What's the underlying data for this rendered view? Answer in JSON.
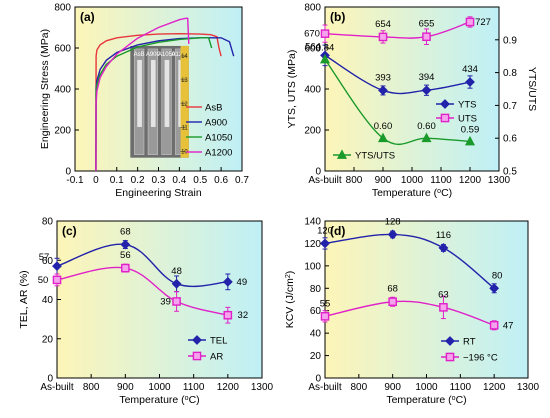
{
  "colors": {
    "red": "#e8363c",
    "blue": "#2222aa",
    "green": "#1a9a2a",
    "magenta": "#e020c8",
    "panel_from": "#fdf5b8",
    "panel_to": "#bff0f6"
  },
  "chart_data": [
    {
      "panel": "(a)",
      "type": "line",
      "xlabel": "Engineering Strain",
      "ylabel": "Engineering Stress (MPa)",
      "xlim": [
        -0.1,
        0.7
      ],
      "ylim": [
        0,
        800
      ],
      "xticks": [
        "-0.1",
        "0",
        "0.1",
        "0.2",
        "0.3",
        "0.4",
        "0.5",
        "0.6",
        "0.7"
      ],
      "yticks": [
        "0",
        "200",
        "400",
        "600",
        "800"
      ],
      "legend": "right",
      "inset_labels": [
        "AsB",
        "A900",
        "A1050",
        "A1200"
      ],
      "inset_scale": [
        "14",
        "13",
        "12",
        "11",
        "10"
      ],
      "series": [
        {
          "name": "AsB",
          "color": "#e8363c",
          "x": [
            0,
            0.001,
            0.005,
            0.02,
            0.05,
            0.1,
            0.2,
            0.3,
            0.4,
            0.5,
            0.55,
            0.58,
            0.59,
            0.6
          ],
          "y": [
            0,
            560,
            590,
            615,
            635,
            650,
            662,
            668,
            670,
            668,
            665,
            655,
            600,
            560
          ]
        },
        {
          "name": "A900",
          "color": "#2222aa",
          "x": [
            0,
            0.001,
            0.005,
            0.02,
            0.05,
            0.1,
            0.2,
            0.3,
            0.4,
            0.5,
            0.6,
            0.64,
            0.66
          ],
          "y": [
            0,
            400,
            440,
            495,
            540,
            578,
            615,
            635,
            646,
            650,
            650,
            630,
            560
          ]
        },
        {
          "name": "A1050",
          "color": "#1a9a2a",
          "x": [
            0,
            0.001,
            0.005,
            0.02,
            0.05,
            0.1,
            0.2,
            0.3,
            0.4,
            0.5,
            0.54,
            0.555
          ],
          "y": [
            0,
            380,
            420,
            470,
            520,
            560,
            605,
            628,
            642,
            650,
            650,
            600
          ]
        },
        {
          "name": "A1200",
          "color": "#e020c8",
          "x": [
            0,
            0.001,
            0.005,
            0.02,
            0.05,
            0.1,
            0.2,
            0.3,
            0.4,
            0.43,
            0.44,
            0.445
          ],
          "y": [
            0,
            330,
            390,
            455,
            510,
            570,
            648,
            700,
            738,
            745,
            745,
            620
          ]
        }
      ]
    },
    {
      "panel": "(b)",
      "type": "line",
      "xlabel": "Temperature (°C)",
      "ylabel": "YTS, UTS (MPa)",
      "ylabel2": "YTS/UTS",
      "categories_x": [
        700,
        900,
        1050,
        1200
      ],
      "xticks": [
        "As-built",
        "800",
        "900",
        "1000",
        "1100",
        "1200",
        "1300"
      ],
      "yticks": [
        "0",
        "200",
        "400",
        "600",
        "800"
      ],
      "yticks2": [
        "0.5",
        "0.6",
        "0.7",
        "0.8",
        "0.9"
      ],
      "ylim": [
        0,
        800
      ],
      "ylim2": [
        0.5,
        1.0
      ],
      "series": [
        {
          "name": "YTS",
          "axis": "left",
          "color": "#2222aa",
          "marker": "diamond",
          "values": [
            564,
            393,
            394,
            434
          ],
          "labels": [
            "564",
            "393",
            "394",
            "434"
          ],
          "err": [
            50,
            22,
            25,
            30
          ]
        },
        {
          "name": "UTS",
          "axis": "left",
          "color": "#e020c8",
          "marker": "square",
          "values": [
            670,
            654,
            655,
            727
          ],
          "labels": [
            "670",
            "654",
            "655",
            "727"
          ],
          "err": [
            42,
            30,
            38,
            25
          ]
        },
        {
          "name": "YTS/UTS",
          "axis": "right",
          "color": "#1a9a2a",
          "marker": "triangle",
          "values": [
            0.84,
            0.6,
            0.6,
            0.59
          ],
          "labels": [
            "0.84",
            "0.60",
            "0.60",
            "0.59"
          ],
          "err": [
            0,
            0,
            0,
            0
          ]
        }
      ]
    },
    {
      "panel": "(c)",
      "type": "line",
      "xlabel": "Temperature (°C)",
      "ylabel": "TEL, AR (%)",
      "categories_x": [
        700,
        900,
        1050,
        1200
      ],
      "xticks": [
        "As-built",
        "800",
        "900",
        "1000",
        "1100",
        "1200",
        "1300"
      ],
      "yticks": [
        "0",
        "20",
        "40",
        "60",
        "80"
      ],
      "ylim": [
        0,
        80
      ],
      "series": [
        {
          "name": "TEL",
          "color": "#2222aa",
          "marker": "diamond",
          "values": [
            57,
            68,
            48,
            49
          ],
          "labels": [
            "57",
            "68",
            "48",
            "49"
          ],
          "err": [
            4,
            2,
            4,
            4
          ]
        },
        {
          "name": "AR",
          "color": "#e020c8",
          "marker": "square",
          "values": [
            50,
            56,
            39,
            32
          ],
          "labels": [
            "50",
            "56",
            "39",
            "32"
          ],
          "err": [
            3,
            2,
            5,
            4
          ]
        }
      ]
    },
    {
      "panel": "(d)",
      "type": "line",
      "xlabel": "Temperature (°C)",
      "ylabel": "KCV (J/cm²)",
      "categories_x": [
        700,
        900,
        1050,
        1200
      ],
      "xticks": [
        "As-built",
        "800",
        "900",
        "1000",
        "1100",
        "1200",
        "1300"
      ],
      "yticks": [
        "0",
        "20",
        "40",
        "60",
        "80",
        "100",
        "120",
        "140"
      ],
      "ylim": [
        0,
        140
      ],
      "series": [
        {
          "name": "RT",
          "color": "#2222aa",
          "marker": "diamond",
          "values": [
            120,
            128,
            116,
            80
          ],
          "labels": [
            "120",
            "128",
            "116",
            "80"
          ],
          "err": [
            5,
            3,
            3,
            4
          ]
        },
        {
          "name": "−196 °C",
          "color": "#e020c8",
          "marker": "square",
          "values": [
            55,
            68,
            63,
            47
          ],
          "labels": [
            "55",
            "68",
            "63",
            "47"
          ],
          "err": [
            5,
            4,
            10,
            4
          ]
        }
      ]
    }
  ]
}
